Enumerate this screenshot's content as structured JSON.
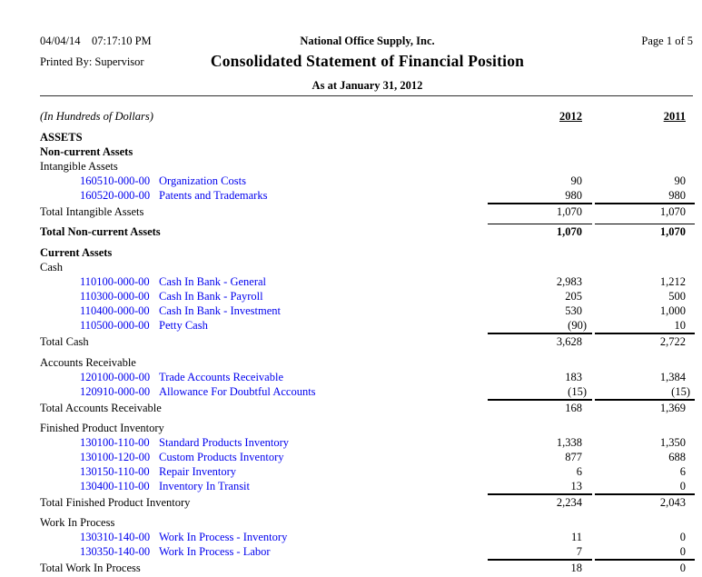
{
  "header": {
    "date": "04/04/14",
    "time": "07:17:10 PM",
    "company": "National Office Supply, Inc.",
    "page_label": "Page 1 of 5",
    "printed_by": "Printed By: Supervisor",
    "title": "Consolidated Statement of Financial Position",
    "subtitle": "As at January 31, 2012"
  },
  "colors": {
    "account_link": "#0000EE",
    "rule": "#000000"
  },
  "table": {
    "unit_note": "(In Hundreds of Dollars)",
    "col_2012": "2012",
    "col_2011": "2011"
  },
  "sections": {
    "assets_label": "ASSETS",
    "noncurrent_label": "Non-current Assets",
    "intangible": {
      "label": "Intangible Assets",
      "rows": [
        {
          "account": "160510-000-00",
          "desc": "Organization Costs",
          "y2012": "90",
          "y2011": "90"
        },
        {
          "account": "160520-000-00",
          "desc": "Patents and Trademarks",
          "y2012": "980",
          "y2011": "980"
        }
      ],
      "total": {
        "label": "Total Intangible Assets",
        "y2012": "1,070",
        "y2011": "1,070"
      }
    },
    "noncurrent_total": {
      "label": "Total Non-current Assets",
      "y2012": "1,070",
      "y2011": "1,070"
    },
    "current_label": "Current Assets",
    "cash": {
      "label": "Cash",
      "rows": [
        {
          "account": "110100-000-00",
          "desc": "Cash In Bank - General",
          "y2012": "2,983",
          "y2011": "1,212"
        },
        {
          "account": "110300-000-00",
          "desc": "Cash In Bank - Payroll",
          "y2012": "205",
          "y2011": "500"
        },
        {
          "account": "110400-000-00",
          "desc": "Cash In Bank - Investment",
          "y2012": "530",
          "y2011": "1,000"
        },
        {
          "account": "110500-000-00",
          "desc": "Petty Cash",
          "y2012": "(90)",
          "y2011": "10"
        }
      ],
      "total": {
        "label": "Total Cash",
        "y2012": "3,628",
        "y2011": "2,722"
      }
    },
    "receivable": {
      "label": "Accounts Receivable",
      "rows": [
        {
          "account": "120100-000-00",
          "desc": "Trade Accounts Receivable",
          "y2012": "183",
          "y2011": "1,384"
        },
        {
          "account": "120910-000-00",
          "desc": "Allowance For Doubtful Accounts",
          "y2012": "(15)",
          "y2011": "(15)"
        }
      ],
      "total": {
        "label": "Total Accounts Receivable",
        "y2012": "168",
        "y2011": "1,369"
      }
    },
    "inventory": {
      "label": "Finished Product Inventory",
      "rows": [
        {
          "account": "130100-110-00",
          "desc": "Standard Products Inventory",
          "y2012": "1,338",
          "y2011": "1,350"
        },
        {
          "account": "130100-120-00",
          "desc": "Custom Products Inventory",
          "y2012": "877",
          "y2011": "688"
        },
        {
          "account": "130150-110-00",
          "desc": "Repair Inventory",
          "y2012": "6",
          "y2011": "6"
        },
        {
          "account": "130400-110-00",
          "desc": "Inventory In Transit",
          "y2012": "13",
          "y2011": "0"
        }
      ],
      "total": {
        "label": "Total Finished Product Inventory",
        "y2012": "2,234",
        "y2011": "2,043"
      }
    },
    "wip": {
      "label": "Work In Process",
      "rows": [
        {
          "account": "130310-140-00",
          "desc": "Work In Process - Inventory",
          "y2012": "11",
          "y2011": "0"
        },
        {
          "account": "130350-140-00",
          "desc": "Work In Process - Labor",
          "y2012": "7",
          "y2011": "0"
        }
      ],
      "total": {
        "label": "Total Work In Process",
        "y2012": "18",
        "y2011": "0"
      }
    }
  }
}
